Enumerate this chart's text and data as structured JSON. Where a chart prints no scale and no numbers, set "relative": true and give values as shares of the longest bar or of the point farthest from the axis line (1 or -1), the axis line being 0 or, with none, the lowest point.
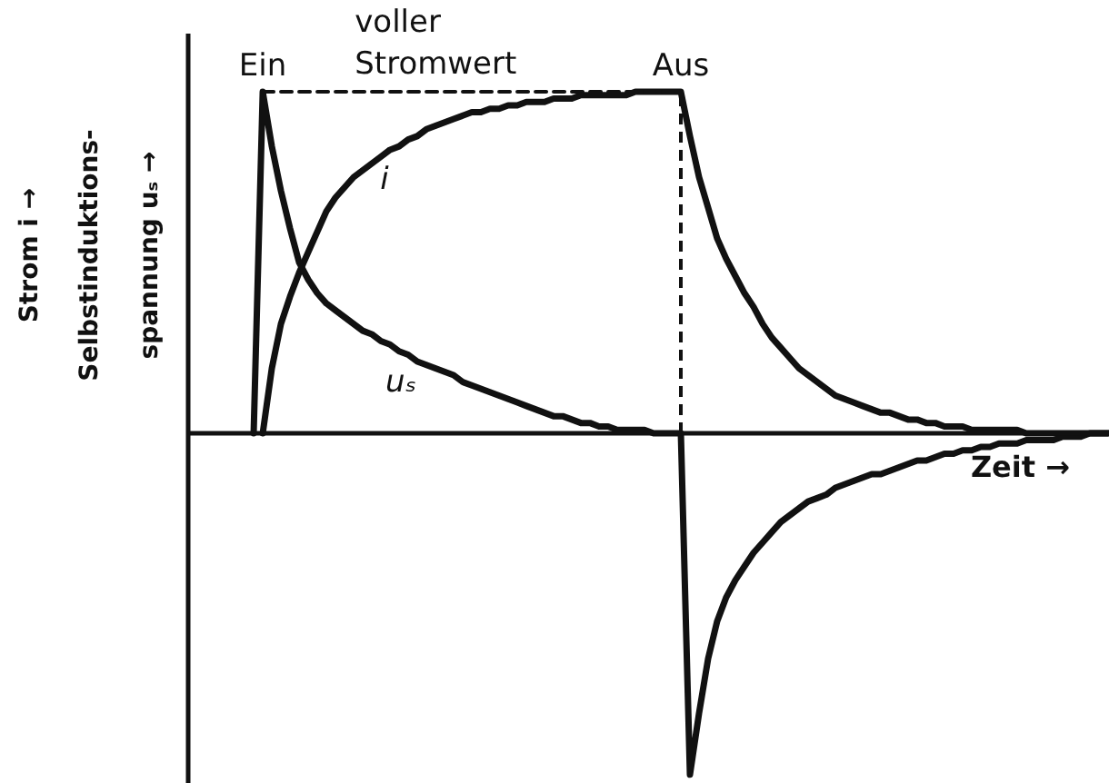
{
  "chart_data": {
    "type": "line",
    "relative": true,
    "tick_labels": "x",
    "xlabel": "Zeit →",
    "ylabel": "Strom i →\nSelbstinduktions-\nspannung uₛ →",
    "categories": [
      null,
      null,
      null,
      null,
      null,
      null,
      null,
      null,
      "Ein",
      null,
      null,
      null,
      null,
      null,
      null,
      null,
      null,
      null,
      null,
      null,
      null,
      null,
      null,
      null,
      null,
      null,
      null,
      null,
      null,
      null,
      null,
      null,
      null,
      null,
      null,
      null,
      null,
      null,
      null,
      null,
      null,
      null,
      null,
      null,
      null,
      null,
      null,
      null,
      null,
      null,
      null,
      null,
      null,
      null,
      "Aus",
      null,
      null,
      null,
      null,
      null,
      null,
      null,
      null,
      null,
      null,
      null,
      null,
      null,
      null,
      null,
      null,
      null,
      null,
      null,
      null,
      null,
      null,
      null,
      null,
      null,
      null,
      null,
      null,
      null,
      null,
      null,
      null,
      null,
      null,
      null,
      null,
      null,
      null,
      null,
      null,
      null,
      null,
      null,
      null,
      null,
      null,
      null
    ],
    "series": [
      {
        "name": "i",
        "color": "#111111",
        "values": [
          null,
          null,
          null,
          null,
          null,
          null,
          null,
          null,
          0,
          0.19,
          0.32,
          0.4,
          0.47,
          0.53,
          0.59,
          0.65,
          0.69,
          0.72,
          0.75,
          0.77,
          0.79,
          0.81,
          0.83,
          0.84,
          0.86,
          0.87,
          0.89,
          0.9,
          0.91,
          0.92,
          0.93,
          0.94,
          0.94,
          0.95,
          0.95,
          0.96,
          0.96,
          0.97,
          0.97,
          0.97,
          0.98,
          0.98,
          0.98,
          0.99,
          0.99,
          0.99,
          0.99,
          0.99,
          0.99,
          1.0,
          1.0,
          1.0,
          1.0,
          1.0,
          1.0,
          0.87,
          0.75,
          0.66,
          0.57,
          0.51,
          0.46,
          0.41,
          0.37,
          0.32,
          0.28,
          0.25,
          0.22,
          0.19,
          0.17,
          0.15,
          0.13,
          0.11,
          0.1,
          0.09,
          0.08,
          0.07,
          0.06,
          0.06,
          0.05,
          0.04,
          0.04,
          0.03,
          0.03,
          0.02,
          0.02,
          0.02,
          0.01,
          0.01,
          0.01,
          0.01,
          0.01,
          0.01,
          0,
          0,
          0,
          0,
          0,
          0,
          0,
          0,
          0,
          0
        ]
      },
      {
        "name": "uₛ",
        "color": "#111111",
        "values": [
          null,
          null,
          null,
          null,
          null,
          null,
          null,
          0,
          1.0,
          0.84,
          0.71,
          0.6,
          0.5,
          0.45,
          0.41,
          0.38,
          0.36,
          0.34,
          0.32,
          0.3,
          0.29,
          0.27,
          0.26,
          0.24,
          0.23,
          0.21,
          0.2,
          0.19,
          0.18,
          0.17,
          0.15,
          0.14,
          0.13,
          0.12,
          0.11,
          0.1,
          0.09,
          0.08,
          0.07,
          0.06,
          0.05,
          0.05,
          0.04,
          0.03,
          0.03,
          0.02,
          0.02,
          0.01,
          0.01,
          0.01,
          0.01,
          0,
          0,
          0,
          0,
          -1.0,
          -0.82,
          -0.66,
          -0.55,
          -0.48,
          -0.43,
          -0.39,
          -0.35,
          -0.32,
          -0.29,
          -0.26,
          -0.24,
          -0.22,
          -0.2,
          -0.19,
          -0.18,
          -0.16,
          -0.15,
          -0.14,
          -0.13,
          -0.12,
          -0.12,
          -0.11,
          -0.1,
          -0.09,
          -0.08,
          -0.08,
          -0.07,
          -0.06,
          -0.06,
          -0.05,
          -0.05,
          -0.04,
          -0.04,
          -0.03,
          -0.03,
          -0.03,
          -0.02,
          -0.02,
          -0.02,
          -0.02,
          -0.01,
          -0.01,
          -0.01,
          0,
          0,
          0
        ]
      },
      {
        "type": "line",
        "color": "#111111",
        "line_style": "dashed",
        "values": [
          null,
          null,
          null,
          null,
          null,
          null,
          null,
          null,
          1,
          1,
          1,
          1,
          1,
          1,
          1,
          1,
          1,
          1,
          1,
          1,
          1,
          1,
          1,
          1,
          1,
          1,
          1,
          1,
          1,
          1,
          1,
          1,
          1,
          1,
          1,
          1,
          1,
          1,
          1,
          1,
          1,
          1,
          1,
          1,
          1,
          1,
          1,
          1,
          1,
          1,
          1,
          1,
          1,
          1,
          1,
          null,
          null,
          null,
          null,
          null,
          null,
          null,
          null,
          null,
          null,
          null,
          null,
          null,
          null,
          null,
          null,
          null,
          null,
          null,
          null,
          null,
          null,
          null,
          null,
          null,
          null,
          null,
          null,
          null,
          null,
          null,
          null,
          null,
          null,
          null,
          null,
          null,
          null,
          null,
          null,
          null,
          null,
          null,
          null,
          null,
          null,
          null
        ]
      }
    ],
    "ref_lines": [
      {
        "axis": "x",
        "value": "Aus",
        "line_style": "dashed",
        "color": "#111111"
      }
    ],
    "annotations": [
      {
        "text": "voller Stromwert",
        "y": 1
      }
    ]
  }
}
